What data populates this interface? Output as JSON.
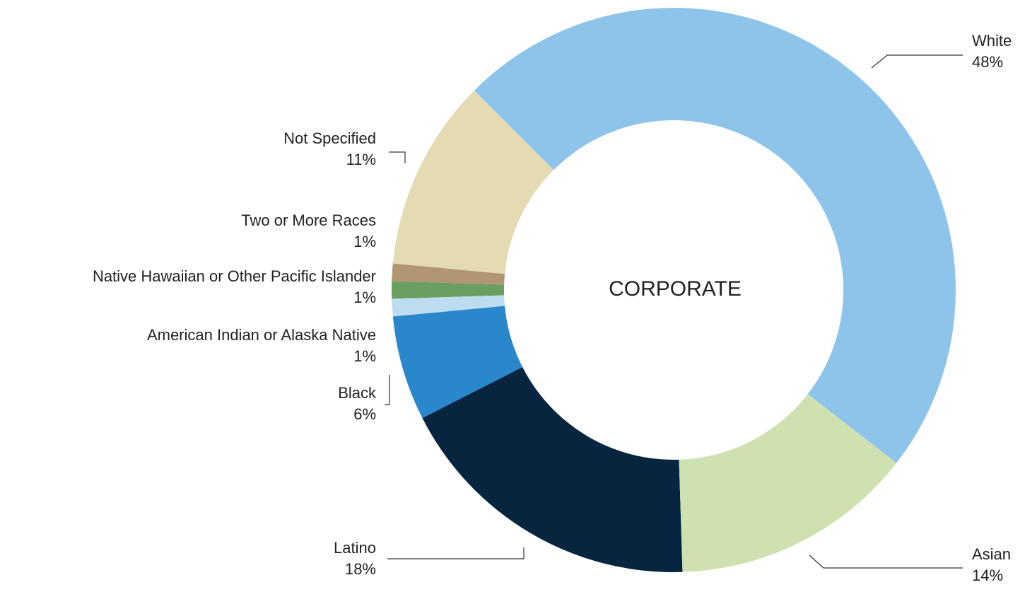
{
  "chart_data": {
    "type": "donut",
    "center_label": "CORPORATE",
    "categories": [
      "White",
      "Asian",
      "Latino",
      "Black",
      "American Indian or Alaska Native",
      "Native Hawaiian or Other Pacific Islander",
      "Two or More Races",
      "Not Specified"
    ],
    "values": [
      48,
      14,
      18,
      6,
      1,
      1,
      1,
      11
    ],
    "value_labels": [
      "48%",
      "14%",
      "18%",
      "6%",
      "1%",
      "1%",
      "1%",
      "11%"
    ],
    "colors": [
      "#8ec4ea",
      "#d0e1b1",
      "#08253f",
      "#2b87cb",
      "#bcdcf0",
      "#6b9f5f",
      "#b29572",
      "#e4dbb3"
    ]
  }
}
